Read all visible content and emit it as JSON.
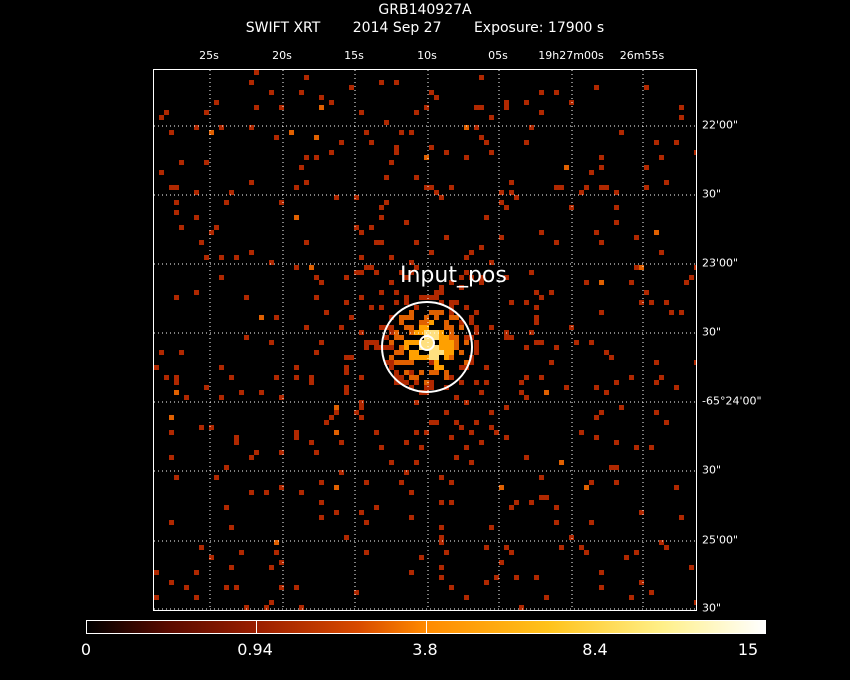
{
  "header": {
    "target": "GRB140927A",
    "instrument": "SWIFT XRT",
    "date": "2014 Sep 27",
    "exposure": "Exposure: 17900 s"
  },
  "ra_ticks": [
    "25s",
    "20s",
    "15s",
    "10s",
    "05s",
    "19h27m00s",
    "26m55s"
  ],
  "dec_ticks": [
    "22'00\"",
    "30\"",
    "23'00\"",
    "30\"",
    "-65°24'00\"",
    "30\"",
    "25'00\"",
    "30\""
  ],
  "source": {
    "label": "Input_pos"
  },
  "colorbar": {
    "labels": [
      "0",
      "0.94",
      "3.8",
      "8.4",
      "15"
    ],
    "min": 0,
    "max": 15
  },
  "colors": {
    "grid": "#ffffff",
    "circle": "#ffffff",
    "low": "#b02800",
    "mid": "#e06000",
    "high": "#ffa000",
    "peak": "#ffe080"
  }
}
